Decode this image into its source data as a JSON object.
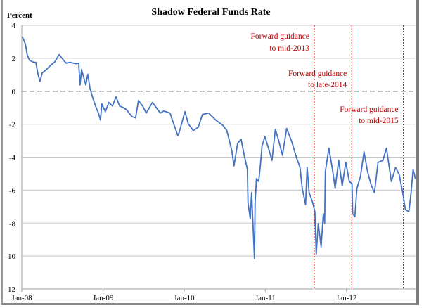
{
  "chart_data": {
    "type": "line",
    "title": "Shadow Federal Funds Rate",
    "ylabel": "Percent",
    "xlabel": "",
    "ylim": [
      -12,
      4
    ],
    "yticks": [
      4,
      2,
      0,
      -2,
      -4,
      -6,
      -8,
      -10,
      -12
    ],
    "xlim": [
      "2008-01-01",
      "2012-11-07"
    ],
    "xticks": [
      {
        "date": "2008-01-01",
        "label": "Jan-08"
      },
      {
        "date": "2009-01-01",
        "label": "Jan-09"
      },
      {
        "date": "2010-01-01",
        "label": "Jan-10"
      },
      {
        "date": "2011-01-01",
        "label": "Jan-11"
      },
      {
        "date": "2012-01-01",
        "label": "Jan-12"
      }
    ],
    "grid": "horizontal",
    "zero_line": "dashed",
    "line_color": "#4472c4",
    "annotation_color": "#c00000",
    "series": [
      {
        "points": [
          [
            "2008-01-04",
            3.29
          ],
          [
            "2008-01-17",
            2.86
          ],
          [
            "2008-01-26",
            2.18
          ],
          [
            "2008-02-05",
            1.88
          ],
          [
            "2008-02-24",
            1.75
          ],
          [
            "2008-03-04",
            1.75
          ],
          [
            "2008-03-14",
            1.03
          ],
          [
            "2008-03-23",
            0.6
          ],
          [
            "2008-04-02",
            1.11
          ],
          [
            "2008-04-21",
            1.32
          ],
          [
            "2008-05-10",
            1.58
          ],
          [
            "2008-05-29",
            1.79
          ],
          [
            "2008-06-17",
            2.22
          ],
          [
            "2008-06-29",
            2.01
          ],
          [
            "2008-07-18",
            1.71
          ],
          [
            "2008-08-06",
            1.75
          ],
          [
            "2008-08-31",
            1.67
          ],
          [
            "2008-09-13",
            1.71
          ],
          [
            "2008-09-19",
            0.38
          ],
          [
            "2008-09-26",
            1.32
          ],
          [
            "2008-10-15",
            0.38
          ],
          [
            "2008-10-24",
            1.03
          ],
          [
            "2008-11-03",
            0.17
          ],
          [
            "2008-11-15",
            -0.38
          ],
          [
            "2008-11-28",
            -0.9
          ],
          [
            "2008-12-11",
            -1.32
          ],
          [
            "2008-12-20",
            -1.75
          ],
          [
            "2008-12-26",
            -0.77
          ],
          [
            "2009-01-11",
            -1.24
          ],
          [
            "2009-01-27",
            -0.68
          ],
          [
            "2009-02-12",
            -0.9
          ],
          [
            "2009-02-28",
            -0.34
          ],
          [
            "2009-03-16",
            -0.9
          ],
          [
            "2009-03-31",
            -0.98
          ],
          [
            "2009-04-16",
            -1.11
          ],
          [
            "2009-05-11",
            -1.54
          ],
          [
            "2009-05-27",
            -1.62
          ],
          [
            "2009-06-09",
            -0.56
          ],
          [
            "2009-06-28",
            -0.9
          ],
          [
            "2009-07-14",
            -1.32
          ],
          [
            "2009-08-11",
            -0.68
          ],
          [
            "2009-09-15",
            -1.32
          ],
          [
            "2009-10-01",
            -1.2
          ],
          [
            "2009-10-29",
            -1.32
          ],
          [
            "2009-11-11",
            -1.84
          ],
          [
            "2009-12-03",
            -2.69
          ],
          [
            "2009-12-09",
            -2.52
          ],
          [
            "2010-01-04",
            -1.24
          ],
          [
            "2010-01-19",
            -1.97
          ],
          [
            "2010-02-11",
            -2.39
          ],
          [
            "2010-03-05",
            -2.18
          ],
          [
            "2010-03-24",
            -1.41
          ],
          [
            "2010-04-21",
            -1.32
          ],
          [
            "2010-05-23",
            -1.75
          ],
          [
            "2010-06-23",
            -2.05
          ],
          [
            "2010-07-12",
            -2.39
          ],
          [
            "2010-08-03",
            -3.59
          ],
          [
            "2010-08-13",
            -4.53
          ],
          [
            "2010-08-29",
            -3.16
          ],
          [
            "2010-09-14",
            -2.91
          ],
          [
            "2010-09-26",
            -3.76
          ],
          [
            "2010-10-12",
            -4.74
          ],
          [
            "2010-10-15",
            -6.75
          ],
          [
            "2010-10-25",
            -7.74
          ],
          [
            "2010-10-31",
            -6.15
          ],
          [
            "2010-11-06",
            -8.03
          ],
          [
            "2010-11-13",
            -10.17
          ],
          [
            "2010-11-16",
            -6.75
          ],
          [
            "2010-11-22",
            -5.3
          ],
          [
            "2010-12-02",
            -5.47
          ],
          [
            "2010-12-11",
            -4.32
          ],
          [
            "2010-12-17",
            -3.33
          ],
          [
            "2010-12-30",
            -2.74
          ],
          [
            "2011-01-15",
            -3.46
          ],
          [
            "2011-01-31",
            -4.19
          ],
          [
            "2011-02-15",
            -2.31
          ],
          [
            "2011-03-03",
            -3.03
          ],
          [
            "2011-03-19",
            -3.89
          ],
          [
            "2011-04-07",
            -2.26
          ],
          [
            "2011-04-29",
            -3.03
          ],
          [
            "2011-05-21",
            -4.02
          ],
          [
            "2011-06-06",
            -4.62
          ],
          [
            "2011-06-16",
            -5.9
          ],
          [
            "2011-07-01",
            -6.88
          ],
          [
            "2011-07-08",
            -4.62
          ],
          [
            "2011-07-17",
            -6.15
          ],
          [
            "2011-08-02",
            -6.75
          ],
          [
            "2011-08-12",
            -7.31
          ],
          [
            "2011-08-18",
            -9.87
          ],
          [
            "2011-08-27",
            -8.03
          ],
          [
            "2011-09-09",
            -9.44
          ],
          [
            "2011-09-19",
            -7.44
          ],
          [
            "2011-09-25",
            -8.03
          ],
          [
            "2011-09-28",
            -4.87
          ],
          [
            "2011-10-14",
            -3.46
          ],
          [
            "2011-10-30",
            -4.74
          ],
          [
            "2011-11-11",
            -5.9
          ],
          [
            "2011-11-27",
            -4.19
          ],
          [
            "2011-12-13",
            -5.73
          ],
          [
            "2011-12-29",
            -4.32
          ],
          [
            "2012-01-14",
            -5.47
          ],
          [
            "2012-01-26",
            -5.6
          ],
          [
            "2012-01-29",
            -7.44
          ],
          [
            "2012-02-08",
            -7.61
          ],
          [
            "2012-02-17",
            -5.9
          ],
          [
            "2012-03-04",
            -5.17
          ],
          [
            "2012-03-20",
            -3.68
          ],
          [
            "2012-04-05",
            -4.87
          ],
          [
            "2012-04-21",
            -5.68
          ],
          [
            "2012-05-06",
            -6.15
          ],
          [
            "2012-05-22",
            -4.32
          ],
          [
            "2012-06-13",
            -4.19
          ],
          [
            "2012-06-29",
            -3.46
          ],
          [
            "2012-07-21",
            -5.47
          ],
          [
            "2012-08-09",
            -4.62
          ],
          [
            "2012-08-25",
            -5.04
          ],
          [
            "2012-09-10",
            -6.15
          ],
          [
            "2012-09-22",
            -7.18
          ],
          [
            "2012-10-08",
            -7.31
          ],
          [
            "2012-10-18",
            -6.11
          ],
          [
            "2012-10-27",
            -4.74
          ],
          [
            "2012-11-06",
            -5.3
          ]
        ]
      }
    ],
    "annotations": [
      {
        "date": "2011-08-09",
        "line1": "Forward guidance",
        "line2": "to mid-2013"
      },
      {
        "date": "2012-01-25",
        "line1": "Forward guidance",
        "line2": "to late-2014"
      },
      {
        "date": "2012-09-13",
        "line1": "Forward guidance",
        "line2": "to mid-2015"
      }
    ]
  }
}
